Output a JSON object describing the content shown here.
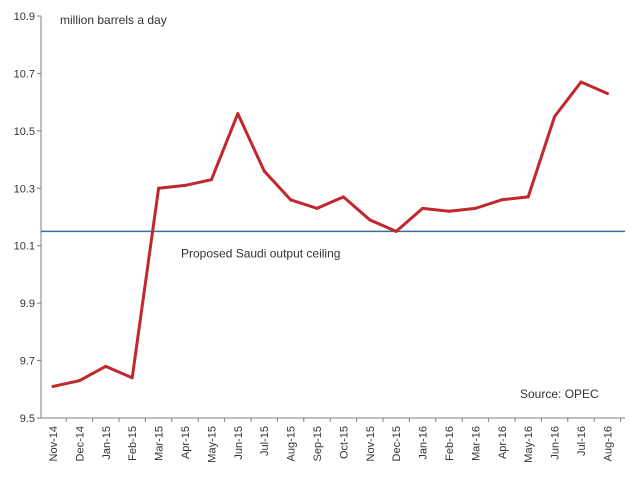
{
  "chart_data": {
    "type": "line",
    "unit_label": "million barrels a day",
    "source": "Source: OPEC",
    "categories": [
      "Nov-14",
      "Dec-14",
      "Jan-15",
      "Feb-15",
      "Mar-15",
      "Apr-15",
      "May-15",
      "Jun-15",
      "Jul-15",
      "Aug-15",
      "Sep-15",
      "Oct-15",
      "Nov-15",
      "Dec-15",
      "Jan-16",
      "Feb-16",
      "Mar-16",
      "Apr-16",
      "May-16",
      "Jun-16",
      "Jul-16",
      "Aug-16"
    ],
    "series": [
      {
        "values": [
          9.61,
          9.63,
          9.68,
          9.64,
          10.3,
          10.31,
          10.33,
          10.56,
          10.36,
          10.26,
          10.23,
          10.27,
          10.19,
          10.15,
          10.23,
          10.22,
          10.23,
          10.26,
          10.27,
          10.55,
          10.67,
          10.63
        ],
        "color": "#c0282d"
      }
    ],
    "reference_line": {
      "value": 10.15,
      "label": "Proposed Saudi output ceiling",
      "color": "#3d6e9e"
    },
    "yticks": [
      "9.5",
      "9.7",
      "9.9",
      "10.1",
      "10.3",
      "10.5",
      "10.7",
      "10.9"
    ],
    "ylim": [
      9.5,
      10.9
    ],
    "grid": false,
    "xlabel": "",
    "ylabel": ""
  }
}
